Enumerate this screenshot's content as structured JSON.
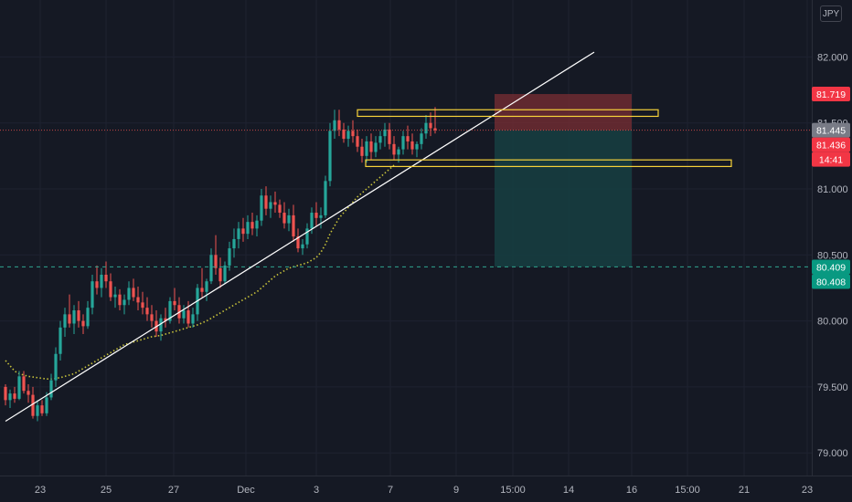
{
  "instrument": {
    "currency_label": "JPY"
  },
  "colors": {
    "background": "#151924",
    "up": "#26a69a",
    "down": "#ef5350",
    "grid": "#1e2230",
    "trendline": "#ffffff",
    "zone": "#f7d23a",
    "moving_average": "#c7c23a",
    "stop_zone": "#7a2e33",
    "target_zone": "#163d40"
  },
  "chart_data": {
    "type": "candlestick",
    "x_tick_labels": [
      "23",
      "25",
      "27",
      "Dec",
      "3",
      "7",
      "9",
      "15:00",
      "14",
      "16",
      "15:00",
      "21",
      "23"
    ],
    "y_tick_labels": [
      "82.000",
      "81.500",
      "81.000",
      "80.500",
      "80.000",
      "79.500",
      "79.000"
    ],
    "y_ticks": [
      82.0,
      81.5,
      81.0,
      80.5,
      80.0,
      79.5,
      79.0
    ],
    "ylim": [
      78.82,
      82.35
    ],
    "price_labels": [
      {
        "text": "81.719",
        "value": 81.719,
        "color": "#f23645"
      },
      {
        "text": "81.445",
        "value": 81.445,
        "color": "#787b86"
      },
      {
        "text": "81.436",
        "value": 81.436,
        "color": "#f23645"
      },
      {
        "text": "14:41",
        "value": 81.33,
        "color": "#f23645"
      },
      {
        "text": "80.409",
        "value": 80.409,
        "color": "#089981"
      },
      {
        "text": "80.408",
        "value": 80.408,
        "color": "#089981"
      }
    ],
    "current_price": 81.445,
    "horizontal_line": 80.41,
    "resistance_zone": [
      81.55,
      81.6
    ],
    "support_zone": [
      81.17,
      81.22
    ],
    "position": {
      "entry": 81.445,
      "stop": 81.719,
      "target": 80.409
    },
    "trendline": [
      {
        "bar": 0,
        "price": 79.24
      },
      {
        "bar": 105,
        "price": 81.52
      }
    ],
    "candles": {
      "columns": [
        "open",
        "high",
        "low",
        "close"
      ],
      "ohlc": [
        [
          79.5,
          79.52,
          79.36,
          79.4
        ],
        [
          79.4,
          79.48,
          79.34,
          79.45
        ],
        [
          79.45,
          79.5,
          79.38,
          79.41
        ],
        [
          79.41,
          79.62,
          79.4,
          79.58
        ],
        [
          79.58,
          79.62,
          79.45,
          79.47
        ],
        [
          79.47,
          79.52,
          79.38,
          79.44
        ],
        [
          79.44,
          79.5,
          79.26,
          79.28
        ],
        [
          79.28,
          79.4,
          79.24,
          79.36
        ],
        [
          79.36,
          79.4,
          79.28,
          79.3
        ],
        [
          79.3,
          79.46,
          79.28,
          79.42
        ],
        [
          79.42,
          79.6,
          79.4,
          79.55
        ],
        [
          79.55,
          79.8,
          79.5,
          79.75
        ],
        [
          79.75,
          80.0,
          79.7,
          79.95
        ],
        [
          79.95,
          80.1,
          79.88,
          80.05
        ],
        [
          80.05,
          80.2,
          79.95,
          79.98
        ],
        [
          79.98,
          80.12,
          79.9,
          80.08
        ],
        [
          80.08,
          80.15,
          79.95,
          80.0
        ],
        [
          80.0,
          80.05,
          79.9,
          79.96
        ],
        [
          79.96,
          80.15,
          79.94,
          80.1
        ],
        [
          80.1,
          80.35,
          80.05,
          80.3
        ],
        [
          80.3,
          80.42,
          80.2,
          80.25
        ],
        [
          80.25,
          80.4,
          80.18,
          80.35
        ],
        [
          80.35,
          80.45,
          80.25,
          80.3
        ],
        [
          80.3,
          80.36,
          80.15,
          80.18
        ],
        [
          80.18,
          80.26,
          80.1,
          80.2
        ],
        [
          80.2,
          80.24,
          80.08,
          80.12
        ],
        [
          80.12,
          80.2,
          80.05,
          80.16
        ],
        [
          80.16,
          80.3,
          80.12,
          80.25
        ],
        [
          80.25,
          80.32,
          80.15,
          80.18
        ],
        [
          80.18,
          80.26,
          80.08,
          80.14
        ],
        [
          80.14,
          80.22,
          80.05,
          80.1
        ],
        [
          80.1,
          80.18,
          80.0,
          80.05
        ],
        [
          80.05,
          80.12,
          79.95,
          80.0
        ],
        [
          80.0,
          80.08,
          79.88,
          79.92
        ],
        [
          79.92,
          80.05,
          79.85,
          80.02
        ],
        [
          80.02,
          80.1,
          79.95,
          80.0
        ],
        [
          80.0,
          80.18,
          79.98,
          80.15
        ],
        [
          80.15,
          80.25,
          80.08,
          80.12
        ],
        [
          80.12,
          80.18,
          79.98,
          80.02
        ],
        [
          80.02,
          80.12,
          79.98,
          80.08
        ],
        [
          80.08,
          80.15,
          79.95,
          79.98
        ],
        [
          79.98,
          80.1,
          79.95,
          80.05
        ],
        [
          80.05,
          80.28,
          80.0,
          80.25
        ],
        [
          80.25,
          80.4,
          80.18,
          80.22
        ],
        [
          80.22,
          80.32,
          80.15,
          80.3
        ],
        [
          80.3,
          80.55,
          80.28,
          80.5
        ],
        [
          80.5,
          80.65,
          80.35,
          80.4
        ],
        [
          80.4,
          80.48,
          80.25,
          80.3
        ],
        [
          80.3,
          80.45,
          80.28,
          80.42
        ],
        [
          80.42,
          80.6,
          80.38,
          80.55
        ],
        [
          80.55,
          80.7,
          80.48,
          80.62
        ],
        [
          80.62,
          80.75,
          80.55,
          80.7
        ],
        [
          80.7,
          80.78,
          80.6,
          80.66
        ],
        [
          80.66,
          80.8,
          80.62,
          80.75
        ],
        [
          80.75,
          80.82,
          80.65,
          80.7
        ],
        [
          80.7,
          80.8,
          80.64,
          80.76
        ],
        [
          80.76,
          81.0,
          80.72,
          80.95
        ],
        [
          80.95,
          81.02,
          80.8,
          80.85
        ],
        [
          80.85,
          80.95,
          80.78,
          80.9
        ],
        [
          80.9,
          80.98,
          80.82,
          80.88
        ],
        [
          80.88,
          80.92,
          80.78,
          80.82
        ],
        [
          80.82,
          80.9,
          80.7,
          80.74
        ],
        [
          80.74,
          80.85,
          80.68,
          80.8
        ],
        [
          80.8,
          80.88,
          80.6,
          80.64
        ],
        [
          80.64,
          80.7,
          80.52,
          80.55
        ],
        [
          80.55,
          80.62,
          80.5,
          80.58
        ],
        [
          80.58,
          80.74,
          80.55,
          80.7
        ],
        [
          80.7,
          80.86,
          80.66,
          80.82
        ],
        [
          80.82,
          80.9,
          80.72,
          80.78
        ],
        [
          80.78,
          80.86,
          80.7,
          80.8
        ],
        [
          80.8,
          81.1,
          80.78,
          81.06
        ],
        [
          81.06,
          81.5,
          81.02,
          81.44
        ],
        [
          81.44,
          81.6,
          81.38,
          81.52
        ],
        [
          81.52,
          81.6,
          81.4,
          81.45
        ],
        [
          81.45,
          81.5,
          81.35,
          81.38
        ],
        [
          81.38,
          81.48,
          81.32,
          81.44
        ],
        [
          81.44,
          81.52,
          81.35,
          81.4
        ],
        [
          81.4,
          81.45,
          81.28,
          81.32
        ],
        [
          81.32,
          81.38,
          81.2,
          81.25
        ],
        [
          81.25,
          81.4,
          81.2,
          81.36
        ],
        [
          81.36,
          81.42,
          81.22,
          81.28
        ],
        [
          81.28,
          81.4,
          81.24,
          81.35
        ],
        [
          81.35,
          81.44,
          81.3,
          81.4
        ],
        [
          81.4,
          81.5,
          81.32,
          81.45
        ],
        [
          81.45,
          81.5,
          81.3,
          81.34
        ],
        [
          81.34,
          81.4,
          81.22,
          81.26
        ],
        [
          81.26,
          81.32,
          81.2,
          81.3
        ],
        [
          81.3,
          81.44,
          81.26,
          81.4
        ],
        [
          81.4,
          81.48,
          81.3,
          81.36
        ],
        [
          81.36,
          81.42,
          81.26,
          81.3
        ],
        [
          81.3,
          81.36,
          81.24,
          81.34
        ],
        [
          81.34,
          81.46,
          81.3,
          81.42
        ],
        [
          81.42,
          81.56,
          81.38,
          81.5
        ],
        [
          81.5,
          81.58,
          81.4,
          81.46
        ],
        [
          81.46,
          81.62,
          81.42,
          81.445
        ]
      ]
    },
    "moving_average": [
      79.7,
      79.66,
      79.62,
      79.6,
      79.59,
      79.58,
      79.575,
      79.57,
      79.565,
      79.56,
      79.56,
      79.565,
      79.57,
      79.58,
      79.59,
      79.6,
      79.62,
      79.64,
      79.66,
      79.68,
      79.7,
      79.72,
      79.74,
      79.76,
      79.78,
      79.8,
      79.82,
      79.83,
      79.84,
      79.85,
      79.86,
      79.87,
      79.88,
      79.885,
      79.89,
      79.9,
      79.91,
      79.92,
      79.93,
      79.94,
      79.95,
      79.96,
      79.97,
      79.985,
      80.0,
      80.02,
      80.04,
      80.06,
      80.08,
      80.1,
      80.12,
      80.14,
      80.16,
      80.18,
      80.2,
      80.22,
      80.25,
      80.28,
      80.31,
      80.34,
      80.36,
      80.38,
      80.4,
      80.41,
      80.42,
      80.43,
      80.44,
      80.46,
      80.48,
      80.52,
      80.58,
      80.66,
      80.72,
      80.78,
      80.82,
      80.86,
      80.9,
      80.94,
      80.97,
      81.0,
      81.03,
      81.06,
      81.09,
      81.12,
      81.15,
      81.18
    ]
  }
}
